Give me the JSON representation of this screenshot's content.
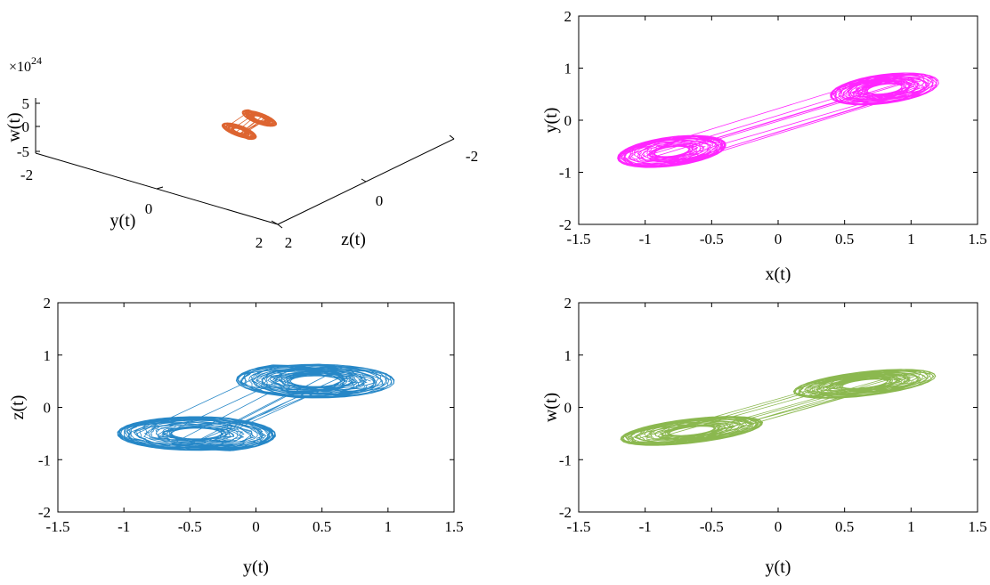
{
  "figure": {
    "colors": {
      "orange": "#D95319",
      "magenta": "#FF00FF",
      "blue": "#0072BD",
      "green": "#77AC30",
      "axis": "#000000"
    }
  },
  "chart_data": [
    {
      "type": "line",
      "projection": "3d",
      "description": "3D phase portrait y(t)-z(t)-w(t)",
      "xlabel": "y(t)",
      "ylabel": "z(t)",
      "zlabel": "w(t)",
      "xlim": [
        -2,
        2
      ],
      "ylim": [
        -2,
        2
      ],
      "zlim": [
        -5,
        5
      ],
      "x_ticks": [
        "-2",
        "0",
        "2"
      ],
      "y_ticks": [
        "-2",
        "0",
        "2"
      ],
      "z_ticks": [
        "5",
        "0",
        "-5"
      ],
      "z_exponent_base": "×10",
      "z_exponent_power": "24",
      "color": "#D95319",
      "grid": false
    },
    {
      "type": "line",
      "description": "x(t)-y(t) phase portrait",
      "xlabel": "x(t)",
      "ylabel": "y(t)",
      "xlim": [
        -1.5,
        1.5
      ],
      "ylim": [
        -2,
        2
      ],
      "x_ticks": [
        "-1.5",
        "-1",
        "-0.5",
        "0",
        "0.5",
        "1",
        "1.5"
      ],
      "y_ticks": [
        "-2",
        "-1",
        "0",
        "1",
        "2"
      ],
      "x_extent": [
        -1.3,
        1.3
      ],
      "y_extent": [
        -1.15,
        1.2
      ],
      "color": "#FF00FF",
      "grid": false
    },
    {
      "type": "line",
      "description": "y(t)-z(t) phase portrait",
      "xlabel": "y(t)",
      "ylabel": "z(t)",
      "xlim": [
        -1.5,
        1.5
      ],
      "ylim": [
        -2,
        2
      ],
      "x_ticks": [
        "-1.5",
        "-1",
        "-0.5",
        "0",
        "0.5",
        "1",
        "1.5"
      ],
      "y_ticks": [
        "-2",
        "-1",
        "0",
        "1",
        "2"
      ],
      "x_extent": [
        -1.22,
        1.22
      ],
      "y_extent": [
        -1.05,
        1.05
      ],
      "color": "#0072BD",
      "grid": false
    },
    {
      "type": "line",
      "description": "y(t)-w(t) phase portrait",
      "xlabel": "y(t)",
      "ylabel": "w(t)",
      "xlim": [
        -1.5,
        1.5
      ],
      "ylim": [
        -2,
        2
      ],
      "x_ticks": [
        "-1.5",
        "-1",
        "-0.5",
        "0",
        "0.5",
        "1",
        "1.5"
      ],
      "y_ticks": [
        "-2",
        "-1",
        "0",
        "1",
        "2"
      ],
      "x_extent": [
        -1.32,
        1.32
      ],
      "y_extent": [
        -1.0,
        1.02
      ],
      "color": "#77AC30",
      "grid": false
    }
  ]
}
